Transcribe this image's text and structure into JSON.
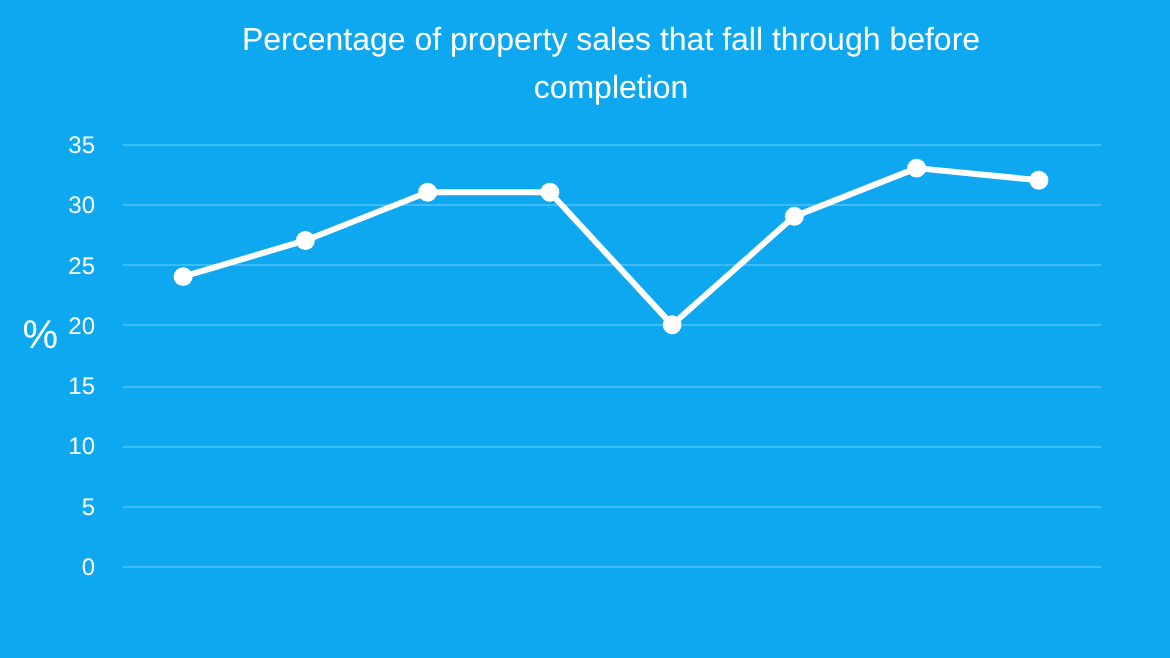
{
  "chart_data": {
    "type": "line",
    "title": "Percentage of property sales that fall through before completion",
    "ylabel": "%",
    "categories": [
      null,
      null,
      null,
      null,
      null,
      null,
      null,
      null
    ],
    "series": [
      {
        "color": "#ffffff",
        "values": [
          24,
          27,
          31,
          31,
          20,
          29,
          33,
          32
        ]
      }
    ],
    "ylim": [
      0,
      35
    ],
    "yticks": [
      0,
      5,
      10,
      15,
      20,
      25,
      30,
      35
    ],
    "grid": "y",
    "marker": "circle",
    "line_style": "solid",
    "tick_labels": "y"
  }
}
